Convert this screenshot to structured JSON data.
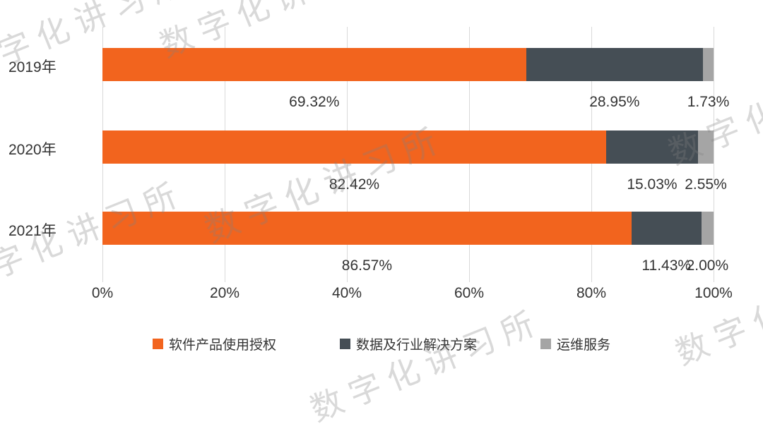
{
  "watermark": {
    "text": "数字化讲习所"
  },
  "chart_data": {
    "type": "bar",
    "orientation": "horizontal",
    "stacked": true,
    "title": "",
    "categories": [
      "2019年",
      "2020年",
      "2021年"
    ],
    "series": [
      {
        "name": "软件产品使用授权",
        "color": "#F2641E",
        "values": [
          69.32,
          82.42,
          86.57
        ]
      },
      {
        "name": "数据及行业解决方案",
        "color": "#454E55",
        "values": [
          28.95,
          15.03,
          11.43
        ]
      },
      {
        "name": "运维服务",
        "color": "#A5A5A5",
        "values": [
          1.73,
          2.55,
          2.0
        ]
      }
    ],
    "value_labels": [
      [
        "69.32%",
        "28.95%",
        "1.73%"
      ],
      [
        "82.42%",
        "15.03%",
        "2.55%"
      ],
      [
        "86.57%",
        "11.43%",
        "2.00%"
      ]
    ],
    "x_ticks": [
      "0%",
      "20%",
      "40%",
      "60%",
      "80%",
      "100%"
    ],
    "xlim": [
      0,
      100
    ],
    "grid": true,
    "legend_position": "bottom"
  }
}
